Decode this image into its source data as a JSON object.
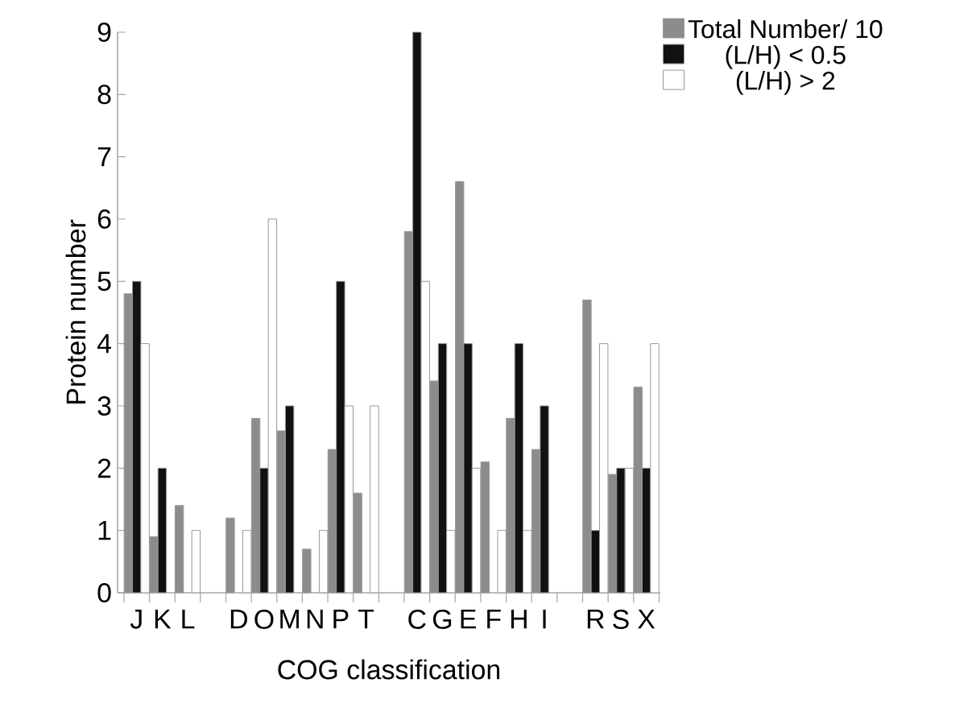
{
  "chart_data": {
    "type": "bar",
    "xlabel": "COG classification",
    "ylabel": "Protein number",
    "categories": [
      "J",
      "K",
      "L",
      null,
      "D",
      "O",
      "M",
      "N",
      "P",
      "T",
      null,
      "C",
      "G",
      "E",
      "F",
      "H",
      "I",
      null,
      "R",
      "S",
      "X"
    ],
    "series": [
      {
        "name": "Total Number/ 10",
        "color": "#8c8c8c",
        "values": [
          4.8,
          0.9,
          1.4,
          null,
          1.2,
          2.8,
          2.6,
          0.7,
          2.3,
          1.6,
          null,
          5.8,
          3.4,
          6.6,
          2.1,
          2.8,
          2.3,
          null,
          4.7,
          1.9,
          3.3
        ]
      },
      {
        "name": "(L/H) < 0.5",
        "color": "#111111",
        "values": [
          5,
          2,
          null,
          null,
          null,
          2,
          3,
          null,
          5,
          null,
          null,
          9,
          4,
          4,
          null,
          4,
          3,
          null,
          1,
          2,
          2
        ]
      },
      {
        "name": "(L/H) > 2",
        "color": "#ffffff",
        "values": [
          4,
          null,
          1,
          null,
          1,
          6,
          null,
          1,
          3,
          3,
          null,
          5,
          1,
          2,
          1,
          1,
          null,
          null,
          4,
          2,
          4
        ]
      }
    ],
    "ylim": [
      0,
      9
    ],
    "yticks": [
      0,
      1,
      2,
      3,
      4,
      5,
      6,
      7,
      8,
      9
    ],
    "legend": "top right",
    "grid": false
  }
}
